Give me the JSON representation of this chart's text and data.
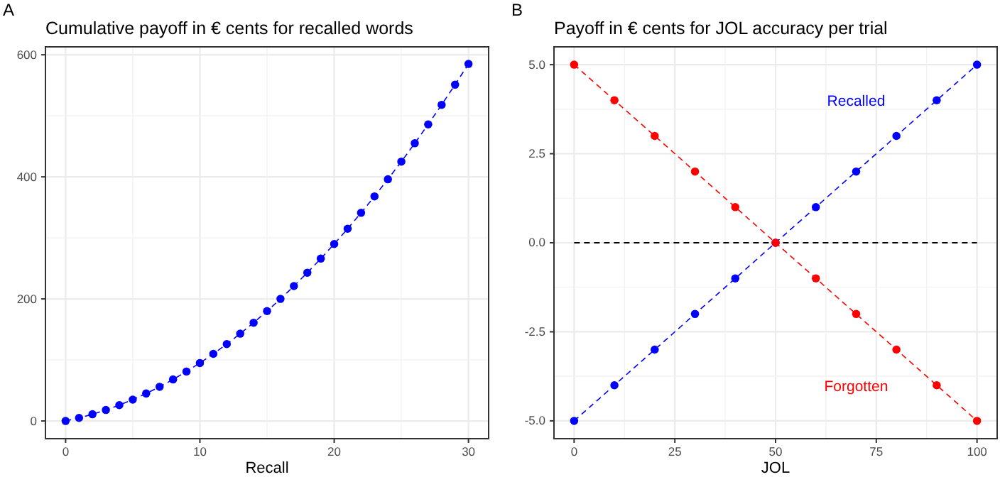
{
  "chart_data": [
    {
      "type": "line",
      "title": "Cumulative payoff in € cents for recalled words",
      "xlabel": "Recall",
      "annotations": [
        "A"
      ],
      "x": [
        0,
        1,
        2,
        3,
        4,
        5,
        6,
        7,
        8,
        9,
        10,
        11,
        12,
        13,
        14,
        15,
        16,
        17,
        18,
        19,
        20,
        21,
        22,
        23,
        24,
        25,
        26,
        27,
        28,
        29,
        30
      ],
      "series": [
        {
          "color": "#0000ff",
          "values": [
            0,
            5,
            11,
            18,
            26,
            35,
            45,
            56,
            68,
            81,
            95,
            110,
            126,
            143,
            161,
            180,
            200,
            221,
            243,
            266,
            290,
            315,
            341,
            368,
            396,
            425,
            455,
            486,
            518,
            551,
            585
          ]
        }
      ],
      "xlim": [
        -1.5,
        31.5
      ],
      "xticks": [
        0,
        10,
        20,
        30
      ],
      "ylim": [
        -29,
        613
      ],
      "yticks": [
        0,
        200,
        400,
        600
      ],
      "grid": true,
      "marker": "circle",
      "line_style": "dashed"
    },
    {
      "type": "line",
      "title": "Payoff in € cents for JOL accuracy per trial",
      "xlabel": "JOL",
      "annotations": [
        "B"
      ],
      "x": [
        0,
        10,
        20,
        30,
        40,
        50,
        60,
        70,
        80,
        90,
        100
      ],
      "series": [
        {
          "name": "Recalled",
          "color": "#0000ff",
          "values": [
            -5,
            -4,
            -3,
            -2,
            -1,
            0,
            1,
            2,
            3,
            4,
            5
          ]
        },
        {
          "name": "Forgotten",
          "color": "#ff0000",
          "values": [
            5,
            4,
            3,
            2,
            1,
            0,
            -1,
            -2,
            -3,
            -4,
            -5
          ]
        }
      ],
      "xlim": [
        -5,
        105
      ],
      "xticks": [
        0,
        25,
        50,
        75,
        100
      ],
      "ylim": [
        -5.5,
        5.5
      ],
      "yticks": [
        {
          "value": -5,
          "label": "-5.0"
        },
        {
          "value": -2.5,
          "label": "-2.5"
        },
        {
          "value": 0,
          "label": "0.0"
        },
        {
          "value": 2.5,
          "label": "2.5"
        },
        {
          "value": 5,
          "label": "5.0"
        }
      ],
      "ref_lines": [
        {
          "axis": "y",
          "value": 0,
          "label": null,
          "color": "#000000",
          "line_style": "dashed"
        }
      ],
      "grid": true,
      "marker": "circle",
      "line_style": "dashed"
    }
  ]
}
